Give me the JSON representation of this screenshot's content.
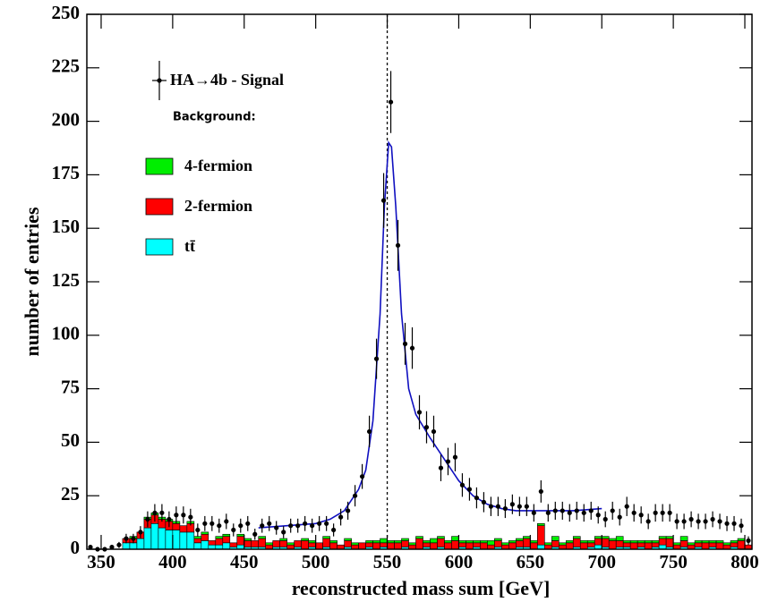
{
  "chart_data": {
    "type": "histogram",
    "xlabel": "reconstructed mass sum [GeV]",
    "ylabel": "number of entries",
    "xlim": [
      340,
      805
    ],
    "ylim": [
      0,
      250
    ],
    "xticks": [
      350,
      400,
      450,
      500,
      550,
      600,
      650,
      700,
      750,
      800
    ],
    "yticks": [
      0,
      25,
      50,
      75,
      100,
      125,
      150,
      175,
      200,
      225,
      250
    ],
    "legend_title": "Background:",
    "bins": [
      340,
      345,
      350,
      355,
      360,
      365,
      370,
      375,
      380,
      385,
      390,
      395,
      400,
      405,
      410,
      415,
      420,
      425,
      430,
      435,
      440,
      445,
      450,
      455,
      460,
      465,
      470,
      475,
      480,
      485,
      490,
      495,
      500,
      505,
      510,
      515,
      520,
      525,
      530,
      535,
      540,
      545,
      550,
      555,
      560,
      565,
      570,
      575,
      580,
      585,
      590,
      595,
      600,
      605,
      610,
      615,
      620,
      625,
      630,
      635,
      640,
      645,
      650,
      655,
      660,
      665,
      670,
      675,
      680,
      685,
      690,
      695,
      700,
      705,
      710,
      715,
      720,
      725,
      730,
      735,
      740,
      745,
      750,
      755,
      760,
      765,
      770,
      775,
      780,
      785,
      790,
      795,
      800,
      805
    ],
    "series": [
      {
        "name": "tt̄",
        "color": "#00ffff",
        "values": [
          0,
          0,
          0,
          0,
          0,
          3,
          3,
          5,
          10,
          12,
          10,
          9,
          9,
          8,
          8,
          3,
          4,
          2,
          2,
          3,
          1,
          2,
          1,
          1,
          1,
          0,
          1,
          1,
          0,
          1,
          0,
          1,
          0,
          1,
          0,
          0,
          1,
          0,
          0,
          1,
          0,
          1,
          0,
          0,
          1,
          0,
          0,
          1,
          0,
          1,
          0,
          0,
          1,
          0,
          1,
          0,
          0,
          1,
          0,
          0,
          1,
          1,
          0,
          2,
          0,
          1,
          0,
          0,
          1,
          0,
          1,
          2,
          1,
          0,
          1,
          1,
          0,
          1,
          0,
          1,
          2,
          1,
          0,
          1,
          0,
          1,
          0,
          1,
          0,
          0,
          1,
          0,
          0
        ]
      },
      {
        "name": "2-fermion",
        "color": "#ff0000",
        "values": [
          0,
          0,
          0,
          0,
          0,
          2,
          2,
          3,
          4,
          4,
          4,
          4,
          3,
          3,
          4,
          2,
          3,
          2,
          3,
          3,
          2,
          4,
          3,
          3,
          4,
          2,
          3,
          3,
          2,
          3,
          4,
          2,
          3,
          4,
          3,
          2,
          3,
          2,
          3,
          2,
          3,
          2,
          3,
          3,
          3,
          2,
          5,
          2,
          3,
          4,
          3,
          4,
          2,
          3,
          2,
          3,
          2,
          3,
          2,
          3,
          3,
          4,
          3,
          9,
          2,
          3,
          2,
          3,
          4,
          3,
          2,
          3,
          4,
          4,
          3,
          2,
          3,
          2,
          3,
          2,
          3,
          4,
          2,
          3,
          2,
          2,
          3,
          2,
          3,
          2,
          2,
          4,
          2
        ]
      },
      {
        "name": "4-fermion",
        "color": "#00ee00",
        "values": [
          0,
          0,
          0,
          0,
          0,
          0,
          1,
          0,
          1,
          1,
          1,
          1,
          1,
          0,
          1,
          1,
          1,
          0,
          1,
          1,
          0,
          1,
          1,
          0,
          1,
          1,
          0,
          1,
          1,
          0,
          1,
          1,
          0,
          1,
          1,
          0,
          1,
          1,
          0,
          1,
          1,
          2,
          1,
          1,
          1,
          1,
          1,
          1,
          2,
          1,
          1,
          2,
          1,
          1,
          1,
          1,
          2,
          1,
          1,
          1,
          1,
          1,
          1,
          1,
          1,
          2,
          1,
          1,
          1,
          1,
          1,
          1,
          1,
          1,
          2,
          1,
          1,
          1,
          1,
          1,
          1,
          1,
          1,
          2,
          1,
          1,
          1,
          1,
          1,
          1,
          1,
          1,
          0
        ]
      }
    ],
    "points": {
      "name": "HA→4b - Signal",
      "color": "#000000",
      "values": [
        1,
        0,
        0,
        1,
        2,
        5,
        5,
        8,
        14,
        17,
        17,
        14,
        16,
        16,
        15,
        9,
        12,
        12,
        11,
        13,
        9,
        11,
        12,
        7,
        11,
        12,
        10,
        8,
        11,
        11,
        12,
        11,
        12,
        12,
        9,
        15,
        18,
        25,
        34,
        55,
        89,
        163,
        209,
        142,
        96,
        94,
        64,
        57,
        55,
        38,
        41,
        43,
        30,
        28,
        24,
        22,
        20,
        20,
        19,
        21,
        20,
        20,
        17,
        27,
        17,
        18,
        18,
        17,
        18,
        17,
        18,
        16,
        14,
        18,
        15,
        20,
        17,
        16,
        13,
        17,
        17,
        17,
        13,
        13,
        14,
        13,
        13,
        14,
        13,
        12,
        12,
        11,
        4
      ],
      "errors": [
        1,
        0,
        0,
        1,
        1.4,
        2.2,
        2.2,
        2.8,
        3.7,
        4.1,
        4.1,
        3.7,
        4,
        4,
        3.9,
        3,
        3.5,
        3.5,
        3.3,
        3.6,
        3,
        3.3,
        3.5,
        2.6,
        3.3,
        3.5,
        3.2,
        2.8,
        3.3,
        3.3,
        3.5,
        3.3,
        3.5,
        3.5,
        3,
        3.9,
        4.2,
        5,
        5.8,
        7.4,
        9.4,
        12.8,
        14.5,
        11.9,
        9.8,
        9.7,
        8,
        7.5,
        7.4,
        6.2,
        6.4,
        6.6,
        5.5,
        5.3,
        4.9,
        4.7,
        4.5,
        4.5,
        4.4,
        4.6,
        4.5,
        4.5,
        4.1,
        5.2,
        4.1,
        4.2,
        4.2,
        4.1,
        4.2,
        4.1,
        4.2,
        4,
        3.7,
        4.2,
        3.9,
        4.5,
        4.1,
        4,
        3.6,
        4.1,
        4.1,
        4.1,
        3.6,
        3.6,
        3.7,
        3.6,
        3.6,
        3.7,
        3.6,
        3.5,
        3.5,
        3.3,
        2
      ]
    },
    "fit": {
      "color": "#1010c0",
      "x": [
        460,
        480,
        500,
        510,
        520,
        530,
        535,
        540,
        545,
        548,
        551,
        553,
        556,
        560,
        565,
        570,
        580,
        590,
        600,
        610,
        620,
        630,
        640,
        660,
        680,
        700
      ],
      "y": [
        10,
        11,
        12,
        14,
        18,
        28,
        37,
        60,
        110,
        160,
        190,
        188,
        160,
        110,
        75,
        63,
        52,
        42,
        32,
        25,
        21,
        19,
        18,
        18,
        18,
        19
      ]
    },
    "vline": 550
  }
}
